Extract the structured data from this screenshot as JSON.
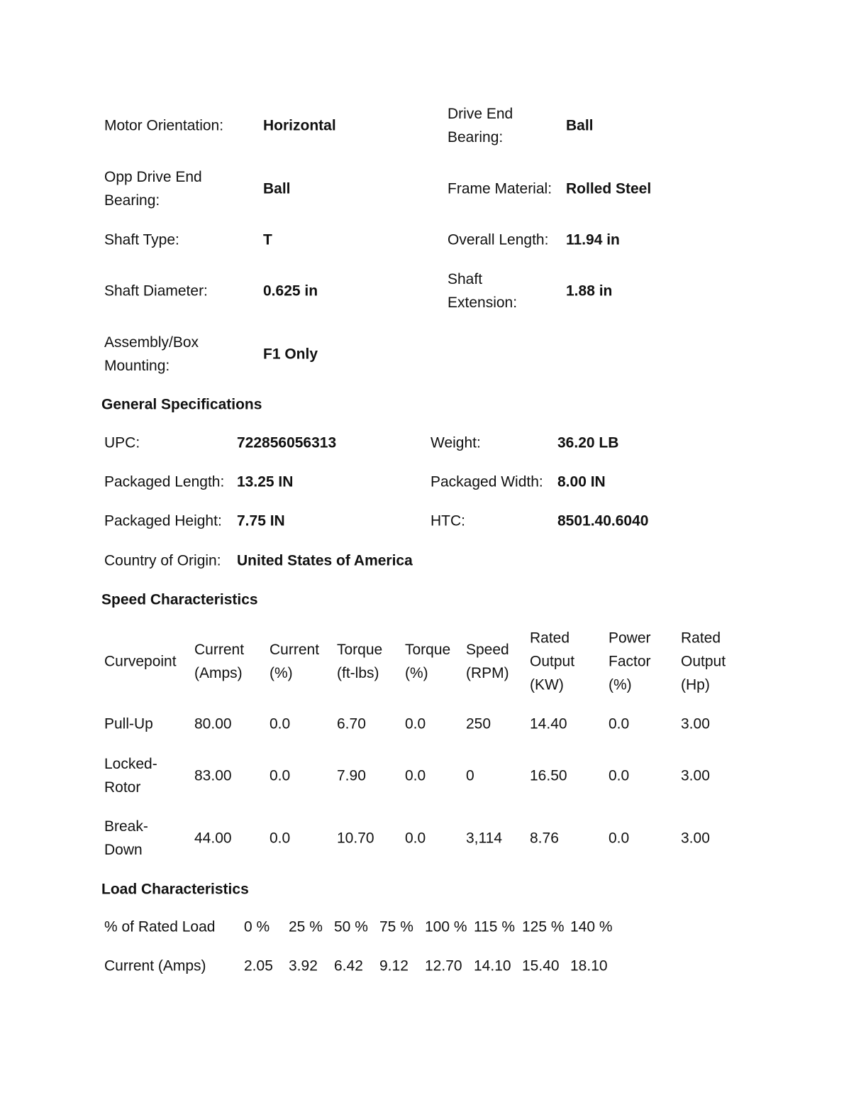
{
  "motor": {
    "orientation_label": "Motor Orientation:",
    "orientation": "Horizontal",
    "de_bearing_label": "Drive End\nBearing:",
    "de_bearing": "Ball",
    "ode_bearing_label": "Opp Drive End\nBearing:",
    "ode_bearing": "Ball",
    "frame_material_label": "Frame Material:",
    "frame_material": "Rolled Steel",
    "shaft_type_label": "Shaft Type:",
    "shaft_type": "T",
    "overall_length_label": "Overall Length:",
    "overall_length": "11.94 in",
    "shaft_diameter_label": "Shaft Diameter:",
    "shaft_diameter": "0.625 in",
    "shaft_extension_label": "Shaft\nExtension:",
    "shaft_extension": "1.88 in",
    "mounting_label": "Assembly/Box\nMounting:",
    "mounting": "F1 Only"
  },
  "general": {
    "heading": "General Specifications",
    "upc_label": "UPC:",
    "upc": "722856056313",
    "weight_label": "Weight:",
    "weight": "36.20 LB",
    "pkg_length_label": "Packaged Length:",
    "pkg_length": "13.25 IN",
    "pkg_width_label": "Packaged Width:",
    "pkg_width": "8.00 IN",
    "pkg_height_label": "Packaged Height:",
    "pkg_height": "7.75 IN",
    "htc_label": "HTC:",
    "htc": "8501.40.6040",
    "origin_label": "Country of Origin:",
    "origin": "United States of America"
  },
  "speed": {
    "heading": "Speed Characteristics",
    "headers": [
      "Curvepoint",
      "Current\n(Amps)",
      "Current\n(%)",
      "Torque\n(ft-lbs)",
      "Torque\n(%)",
      "Speed\n(RPM)",
      "Rated\nOutput\n(KW)",
      "Power\nFactor\n(%)",
      "Rated\nOutput\n(Hp)"
    ],
    "rows": [
      [
        "Pull-Up",
        "80.00",
        "0.0",
        "6.70",
        "0.0",
        "250",
        "14.40",
        "0.0",
        "3.00"
      ],
      [
        "Locked-\nRotor",
        "83.00",
        "0.0",
        "7.90",
        "0.0",
        "0",
        "16.50",
        "0.0",
        "3.00"
      ],
      [
        "Break-\nDown",
        "44.00",
        "0.0",
        "10.70",
        "0.0",
        "3,114",
        "8.76",
        "0.0",
        "3.00"
      ]
    ]
  },
  "load": {
    "heading": "Load Characteristics",
    "rows": [
      [
        "% of Rated Load",
        "0 %",
        "25 %",
        "50 %",
        "75 %",
        "100 %",
        "115 %",
        "125 %",
        "140 %"
      ],
      [
        "Current (Amps)",
        "2.05",
        "3.92",
        "6.42",
        "9.12",
        "12.70",
        "14.10",
        "15.40",
        "18.10"
      ]
    ]
  }
}
